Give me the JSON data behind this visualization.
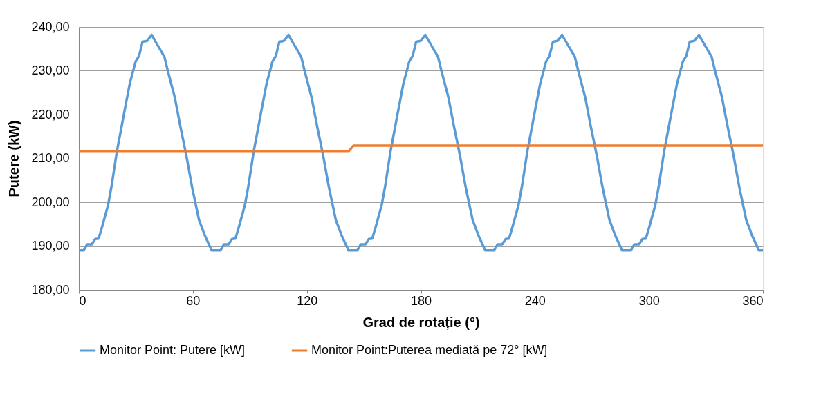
{
  "chart_data": {
    "type": "line",
    "xlabel": "Grad de rotație (°)",
    "ylabel": "Putere (kW)",
    "xlim": [
      0,
      360
    ],
    "xticks": [
      0,
      60,
      120,
      180,
      240,
      300,
      360
    ],
    "ylim": [
      180,
      240
    ],
    "yticks": [
      {
        "value": 180,
        "label": "180,00"
      },
      {
        "value": 190,
        "label": "190,00"
      },
      {
        "value": 200,
        "label": "200,00"
      },
      {
        "value": 210,
        "label": "210,00"
      },
      {
        "value": 220,
        "label": "220,00"
      },
      {
        "value": 230,
        "label": "230,00"
      },
      {
        "value": 240,
        "label": "240,00"
      }
    ],
    "grid": "y",
    "legend": "bottom",
    "marker": "none",
    "line_style": "solid",
    "series": [
      {
        "name": "Monitor Point: Putere [kW]",
        "color": "#5b9bd5",
        "x": [
          0,
          2.5,
          4.4,
          6.8,
          8.6,
          10.4,
          12.3,
          15.3,
          17.1,
          20.1,
          23.8,
          26.8,
          29.9,
          31.7,
          33.5,
          35.9,
          38.3,
          40.8,
          45.0,
          46.8,
          50.5,
          53.5,
          56.5,
          59.6,
          61.4,
          63.2,
          66.3,
          69.9,
          72,
          74.5,
          76.4,
          78.8,
          80.6,
          82.4,
          84.3,
          87.3,
          89.1,
          92.1,
          95.8,
          98.8,
          101.9,
          103.7,
          105.5,
          107.9,
          110.3,
          112.8,
          117.0,
          118.8,
          122.5,
          125.5,
          128.5,
          131.6,
          133.4,
          135.2,
          138.3,
          141.9,
          144,
          146.5,
          148.4,
          150.8,
          152.6,
          154.4,
          156.3,
          159.3,
          161.1,
          164.1,
          167.8,
          170.8,
          173.9,
          175.7,
          177.5,
          179.9,
          182.3,
          184.8,
          189.0,
          190.8,
          194.5,
          197.5,
          200.5,
          203.6,
          205.4,
          207.2,
          210.3,
          213.9,
          216,
          218.5,
          220.4,
          222.8,
          224.6,
          226.4,
          228.3,
          231.3,
          233.1,
          236.1,
          239.8,
          242.8,
          245.9,
          247.7,
          249.5,
          251.9,
          254.3,
          256.8,
          261.0,
          262.8,
          266.5,
          269.5,
          272.5,
          275.6,
          277.4,
          279.2,
          282.3,
          285.9,
          288,
          290.5,
          292.4,
          294.8,
          296.6,
          298.4,
          300.3,
          303.3,
          305.1,
          308.1,
          311.8,
          314.8,
          317.9,
          319.7,
          321.5,
          323.9,
          326.3,
          328.8,
          333.0,
          334.8,
          338.5,
          341.5,
          344.5,
          347.6,
          349.4,
          351.2,
          354.3,
          357.9,
          360
        ],
        "values": [
          189.0,
          189.0,
          190.4,
          190.4,
          191.6,
          191.7,
          194.5,
          199.2,
          203.4,
          211.8,
          220.3,
          227.1,
          232.1,
          233.4,
          236.6,
          236.8,
          238.2,
          236.3,
          233.2,
          230.0,
          223.9,
          217.1,
          210.8,
          203.4,
          199.7,
          196.0,
          192.4,
          189.0,
          189.0,
          189.0,
          190.4,
          190.4,
          191.6,
          191.7,
          194.5,
          199.2,
          203.4,
          211.8,
          220.3,
          227.1,
          232.1,
          233.4,
          236.6,
          236.8,
          238.2,
          236.3,
          233.2,
          230.0,
          223.9,
          217.1,
          210.8,
          203.4,
          199.7,
          196.0,
          192.4,
          189.0,
          189.0,
          189.0,
          190.4,
          190.4,
          191.6,
          191.7,
          194.5,
          199.2,
          203.4,
          211.8,
          220.3,
          227.1,
          232.1,
          233.4,
          236.6,
          236.8,
          238.2,
          236.3,
          233.2,
          230.0,
          223.9,
          217.1,
          210.8,
          203.4,
          199.7,
          196.0,
          192.4,
          189.0,
          189.0,
          189.0,
          190.4,
          190.4,
          191.6,
          191.7,
          194.5,
          199.2,
          203.4,
          211.8,
          220.3,
          227.1,
          232.1,
          233.4,
          236.6,
          236.8,
          238.2,
          236.3,
          233.2,
          230.0,
          223.9,
          217.1,
          210.8,
          203.4,
          199.7,
          196.0,
          192.4,
          189.0,
          189.0,
          189.0,
          190.4,
          190.4,
          191.6,
          191.7,
          194.5,
          199.2,
          203.4,
          211.8,
          220.3,
          227.1,
          232.1,
          233.4,
          236.6,
          236.8,
          238.2,
          236.3,
          233.2,
          230.0,
          223.9,
          217.1,
          210.8,
          203.4,
          199.7,
          196.0,
          192.4,
          189.0,
          189.0
        ]
      },
      {
        "name": "Monitor Point:Puterea mediată pe 72° [kW]",
        "color": "#ed7d31",
        "x": [
          0,
          142.1,
          144.5,
          360
        ],
        "values": [
          211.7,
          211.7,
          212.9,
          212.9
        ]
      }
    ]
  }
}
